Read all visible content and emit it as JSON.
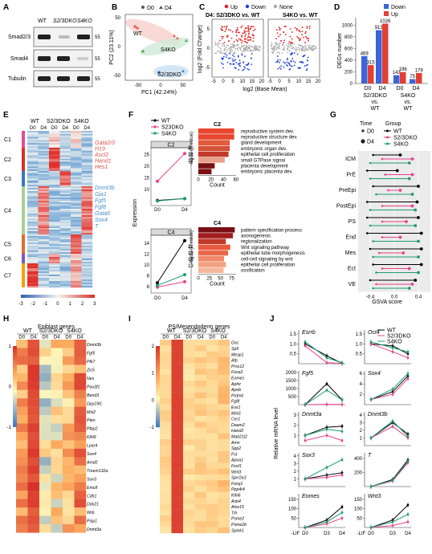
{
  "panels": {
    "A": "A",
    "B": "B",
    "C": "C",
    "D": "D",
    "E": "E",
    "F": "F",
    "G": "G",
    "H": "H",
    "I": "I",
    "J": "J"
  },
  "A": {
    "lanes": [
      "WT",
      "S2/3DKO",
      "S4KO"
    ],
    "rows": [
      {
        "protein": "Smad2/3",
        "mw": "55"
      },
      {
        "protein": "Smad4",
        "mw": "55"
      },
      {
        "protein": "Tubulin",
        "mw": "55"
      }
    ]
  },
  "B": {
    "legend": [
      "D0",
      "D4"
    ],
    "xlabel": "PC1 (42.24%)",
    "ylabel": "PC2 (23.11%)",
    "groups": [
      "WT",
      "S4KO",
      "S2/3DKO"
    ],
    "xticks": [
      "-50",
      "0",
      "50"
    ],
    "yticks": [
      "50",
      "0",
      "-50"
    ]
  },
  "C": {
    "legend": [
      "Up",
      "Down",
      "None"
    ],
    "legend_colors": [
      "#e31a1c",
      "#1f3fd6",
      "#aaaaaa"
    ],
    "title_left": "D4: S2/3DKO vs. WT",
    "title_right": "S4KO vs. WT",
    "ylabel": "log2 (Fold Change)",
    "xlabel": "log2 (Base Mean)",
    "xticks": [
      "-5",
      "0",
      "5",
      "10",
      "15",
      "20"
    ],
    "xticks2": [
      "-5",
      "0",
      "5",
      "10",
      "15",
      "20"
    ],
    "yticks": [
      "5",
      "0",
      "-5"
    ]
  },
  "D": {
    "ylabel": "DEGs number",
    "legend": [
      "Down",
      "Up"
    ],
    "colors": [
      "#3b64d9",
      "#e43f35"
    ],
    "xticks": [
      "D0",
      "D4",
      "D0",
      "D4"
    ],
    "xgroups": [
      "S2/3DKO",
      "vs.",
      "WT",
      "S4KO",
      "vs.",
      "WT"
    ],
    "yticks": [
      "0",
      "200",
      "400",
      "600",
      "800",
      "1000"
    ],
    "ymax": 1100,
    "chart_data": {
      "type": "bar",
      "categories": [
        "S2/3DKO D0",
        "S2/3DKO D4",
        "S4KO D0",
        "S4KO D4"
      ],
      "series": [
        {
          "name": "Down",
          "values": [
            469,
            913,
            143,
            75
          ]
        },
        {
          "name": "Up",
          "values": [
            315,
            1026,
            196,
            179
          ]
        }
      ]
    }
  },
  "E": {
    "header_groups": [
      "WT",
      "S2/3DKO",
      "S4KO"
    ],
    "header_days": [
      "D0",
      "D4",
      "D0",
      "D4",
      "D0",
      "D4"
    ],
    "clusters": [
      "C1",
      "C2",
      "C3",
      "C4",
      "C5",
      "C6",
      "C7"
    ],
    "genes_red": [
      "Gata2/3",
      "H19",
      "Ascl2",
      "Hand1",
      "Hes1"
    ],
    "genes_blue": [
      "Dnmt3b",
      "Gja1",
      "Fgf5",
      "Fgf8",
      "Gata6",
      "Sox4",
      "T"
    ],
    "scale": [
      "-3",
      "-2",
      "-1",
      "0",
      "1",
      "2",
      "3"
    ]
  },
  "F": {
    "legend": [
      "WT",
      "S23DKO",
      "S4KO"
    ],
    "colors": [
      "#000000",
      "#e8418b",
      "#1e9c6e"
    ],
    "ylabel": "Expression",
    "xticks": [
      "D0",
      "D4"
    ],
    "c2": {
      "label": "C2",
      "yticks": [
        "10",
        "15",
        "20",
        "25"
      ],
      "chart_data": {
        "type": "line",
        "x": [
          "D0",
          "D4"
        ],
        "series": [
          {
            "name": "WT",
            "values": [
              5.2,
              6.0
            ]
          },
          {
            "name": "S23DKO",
            "values": [
              13.5,
              25.5
            ]
          },
          {
            "name": "S4KO",
            "values": [
              5.0,
              6.0
            ]
          }
        ]
      }
    },
    "c4": {
      "label": "C4",
      "yticks": [
        "6",
        "8",
        "10",
        "12",
        "14"
      ],
      "chart_data": {
        "type": "line",
        "x": [
          "D0",
          "D4"
        ],
        "series": [
          {
            "name": "WT",
            "values": [
              6.7,
              14.5
            ]
          },
          {
            "name": "S23DKO",
            "values": [
              5.9,
              6.9
            ]
          },
          {
            "name": "S4KO",
            "values": [
              6.2,
              8.2
            ]
          }
        ]
      }
    },
    "bar_xlabel": "Count",
    "bar_ylabel": "-log10 (P value)",
    "go_c2": {
      "title": "C2",
      "legend": [
        "20",
        "16",
        "12"
      ],
      "xticks": [
        "0",
        "20",
        "40",
        "60"
      ],
      "xmax": 60,
      "terms": [
        "reproductive system dev.",
        "reproductive structure dev.",
        "gland development",
        "embryonic organ dev.",
        "epithelial cell proliferation",
        "small GTPase signal",
        "placenta development",
        "embryonic placenta dev."
      ],
      "counts": [
        57,
        57,
        50,
        50,
        48,
        42,
        26,
        21
      ],
      "colors": [
        "#e8462f",
        "#e8462f",
        "#e25a3b",
        "#d45238",
        "#c0392b",
        "#e8a08a",
        "#7a0f14",
        "#7a0f14"
      ]
    },
    "go_c4": {
      "title": "C4",
      "legend": [
        "22",
        "19",
        "16",
        "13"
      ],
      "xticks": [
        "0",
        "25",
        "50",
        "75"
      ],
      "xmax": 85,
      "terms": [
        "pattern specification process",
        "axonogenesis",
        "regionalization",
        "Wnt signaling pathway",
        "epithelial tube morphogenesis",
        "cell-cell signaling by wnt",
        "epithelial cell proliferation",
        "ossification"
      ],
      "counts": [
        82,
        78,
        62,
        72,
        67,
        58,
        62,
        57
      ],
      "colors": [
        "#7a0f14",
        "#a01d1d",
        "#c0392b",
        "#e8593f",
        "#e86a4a",
        "#ef8a6b",
        "#f3a182",
        "#f7b79c"
      ]
    }
  },
  "G": {
    "title_time": "Time",
    "title_group": "Group",
    "time_legend": [
      "D0",
      "D4"
    ],
    "group_legend": [
      "WT",
      "S2/3DKO",
      "S4KO"
    ],
    "colors": [
      "#000000",
      "#e8418b",
      "#1e9c6e"
    ],
    "xlabel": "GSVA score",
    "xticks": [
      "-0.4",
      "0.0",
      "0.4"
    ],
    "chart_data": {
      "type": "scatter",
      "categories": [
        "ICM",
        "PrE",
        "PreEpi",
        "PostEpi",
        "PS",
        "End",
        "Mes",
        "Ect",
        "VE"
      ],
      "series": [
        {
          "name": "WT",
          "d0": [
            -0.35,
            -0.45,
            -0.35,
            -0.45,
            -0.45,
            -0.45,
            -0.4,
            -0.35,
            -0.4
          ],
          "d4": [
            0.1,
            0.05,
            0.4,
            0.38,
            0.4,
            0.45,
            0.45,
            0.45,
            0.35
          ]
        },
        {
          "name": "S2/3DKO",
          "d0": [
            -0.2,
            -0.15,
            -0.1,
            -0.2,
            -0.2,
            -0.2,
            -0.25,
            -0.2,
            -0.3
          ],
          "d4": [
            0.3,
            0.3,
            0.1,
            0.3,
            0.2,
            0.1,
            0.15,
            0.25,
            0.3
          ]
        },
        {
          "name": "S4KO",
          "d0": [
            -0.4,
            -0.4,
            -0.3,
            -0.4,
            -0.4,
            -0.35,
            -0.35,
            -0.3,
            -0.35
          ],
          "d4": [
            0.25,
            0.25,
            0.3,
            0.35,
            0.35,
            0.4,
            0.4,
            0.4,
            0.25
          ]
        }
      ]
    }
  },
  "H": {
    "title": "Epiblast genes",
    "groups": [
      "WT",
      "S2/3DKO",
      "S4KO"
    ],
    "days": [
      "D0",
      "D4",
      "D0",
      "D4",
      "D0",
      "D4"
    ],
    "genes": [
      "Dnmt3b",
      "Fgf5",
      "Ptk7",
      "Zic5",
      "Nes",
      "Pou3f1",
      "Bend3",
      "Dpy19l1",
      "Msi2",
      "Pten",
      "Ptbp2",
      "Klhl9",
      "Lpar4",
      "Sox4",
      "Amd2",
      "Tmem132a",
      "Sox3",
      "Emc8",
      "Cdh1",
      "Ddx21",
      "Wrb",
      "Psip1",
      "Dnmt3a"
    ],
    "scale": [
      "1",
      "0",
      "-1"
    ]
  },
  "I": {
    "title": "PS/Mesendoderm genes",
    "groups": [
      "WT",
      "S2/3DKO",
      "S4KO"
    ],
    "days": [
      "D0",
      "D4",
      "D0",
      "D4",
      "D0",
      "D4"
    ],
    "genes": [
      "Gsc",
      "Sp5",
      "Mesp1",
      "Afp",
      "Prss12",
      "Foxa2",
      "Eomes",
      "Aplnr",
      "Apob",
      "Prdm6",
      "Fgf8",
      "Evx1",
      "Mixl1",
      "Cer1",
      "Daam2",
      "Hand2",
      "Mab21l2",
      "Amn",
      "Spp2",
      "Fst",
      "Apoa1",
      "Foxf1",
      "Wnt3",
      "Sprr2a3",
      "Foxq1",
      "Ppp4r4",
      "Klhl6",
      "Asb4",
      "Alox15",
      "Trh",
      "Psme2",
      "Psme2b",
      "Spink1"
    ],
    "scale": [
      "2",
      "1",
      "0",
      "-1"
    ]
  },
  "J": {
    "ylabel": "Relative mRNA level",
    "legend": [
      "WT",
      "S2/3DKO",
      "S4KO"
    ],
    "colors": [
      "#000000",
      "#e8418b",
      "#1e9c6e"
    ],
    "xticks": [
      "-LIF",
      "D0",
      "D3",
      "D4"
    ],
    "chart_data": [
      {
        "gene": "Esrrb",
        "yticks": [
          "0.5",
          "1.0",
          "1.5"
        ],
        "ymax": 1.7,
        "series": [
          [
            1.0,
            0.4,
            0.02
          ],
          [
            0.9,
            0.05,
            0.02
          ],
          [
            1.1,
            0.3,
            0.05
          ]
        ]
      },
      {
        "gene": "Oct4",
        "yticks": [
          "0.5",
          "1.0",
          "1.5"
        ],
        "ymax": 1.7,
        "series": [
          [
            1.0,
            0.9,
            0.5
          ],
          [
            1.0,
            0.6,
            0.3
          ],
          [
            1.1,
            0.8,
            0.6
          ]
        ]
      },
      {
        "gene": "Fgf5",
        "yticks": [
          "500",
          "1000",
          "1500",
          "2000"
        ],
        "ymax": 2100,
        "series": [
          [
            0,
            1300,
            300
          ],
          [
            0,
            20,
            10
          ],
          [
            0,
            900,
            300
          ]
        ]
      },
      {
        "gene": "Sox4",
        "yticks": [
          "2",
          "4",
          "6"
        ],
        "ymax": 6.5,
        "series": [
          [
            1.0,
            2.5,
            5.5
          ],
          [
            1.0,
            2.0,
            5.0
          ],
          [
            1.0,
            3.0,
            6.0
          ]
        ]
      },
      {
        "gene": "Dnmt3a",
        "yticks": [
          "1",
          "2",
          "3"
        ],
        "ymax": 3.3,
        "series": [
          [
            1.0,
            1.8,
            1.9
          ],
          [
            0.5,
            1.0,
            0.5
          ],
          [
            1.0,
            1.6,
            1.4
          ]
        ]
      },
      {
        "gene": "Dnmt3b",
        "yticks": [
          "1",
          "2",
          "3",
          "4"
        ],
        "ymax": 4.4,
        "series": [
          [
            1.0,
            3.0,
            1.5
          ],
          [
            1.0,
            2.5,
            1.0
          ],
          [
            1.0,
            3.2,
            1.2
          ]
        ]
      },
      {
        "gene": "Sox3",
        "yticks": [
          "1",
          "2",
          "3",
          "4"
        ],
        "ymax": 4.4,
        "series": [
          [
            1.0,
            1.5,
            1.8
          ],
          [
            1.0,
            1.2,
            1.5
          ],
          [
            1.0,
            2.5,
            3.5
          ]
        ]
      },
      {
        "gene": "T",
        "yticks": [
          "200",
          "400"
        ],
        "ymax": 480,
        "series": [
          [
            0,
            100,
            380
          ],
          [
            0,
            80,
            340
          ],
          [
            0,
            90,
            360
          ]
        ]
      },
      {
        "gene": "Eomes",
        "yticks": [
          "50",
          "100",
          "150"
        ],
        "ymax": 180,
        "series": [
          [
            0,
            40,
            110
          ],
          [
            0,
            20,
            50
          ],
          [
            0,
            30,
            80
          ]
        ]
      },
      {
        "gene": "Wnt3",
        "yticks": [
          "50",
          "100",
          "150"
        ],
        "ymax": 180,
        "series": [
          [
            0,
            40,
            120
          ],
          [
            0,
            10,
            30
          ],
          [
            0,
            30,
            70
          ]
        ]
      }
    ]
  }
}
